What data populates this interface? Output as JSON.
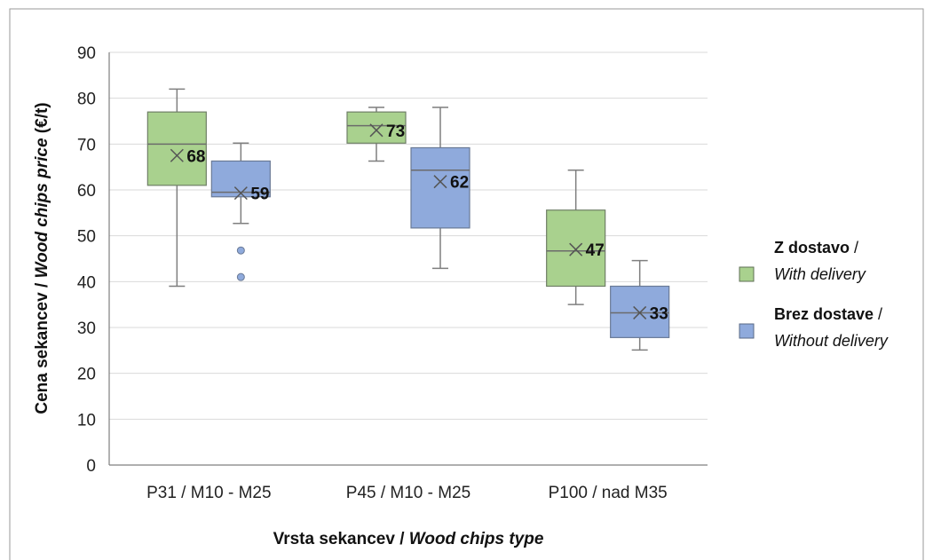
{
  "chart_data": {
    "type": "box",
    "ylabel_main": "Cena sekancev / ",
    "ylabel_italic": "Wood chips price",
    "ylabel_unit": " (€/t)",
    "xlabel_main": "Vrsta sekancev / ",
    "xlabel_italic": "Wood chips type",
    "ylim": [
      0,
      90
    ],
    "yticks": [
      0,
      10,
      20,
      30,
      40,
      50,
      60,
      70,
      80,
      90
    ],
    "grid": true,
    "legend_position": "right",
    "categories": [
      "P31 / M10 - M25",
      "P45 / M10 - M25",
      "P100 / nad M35"
    ],
    "series": [
      {
        "legend_bold": "Z dostavo",
        "legend_sep": " /",
        "legend_italic": "With delivery",
        "color": "#a9d18e",
        "stroke": "#6f7f66",
        "boxes": [
          {
            "min": 39,
            "q1": 61,
            "median": 70,
            "q3": 77,
            "max": 82,
            "mean": 67.5,
            "mean_label": "68",
            "outliers": []
          },
          {
            "min": 66.3,
            "q1": 70.2,
            "median": 74,
            "q3": 77,
            "max": 78,
            "mean": 73,
            "mean_label": "73",
            "outliers": []
          },
          {
            "min": 35,
            "q1": 39,
            "median": 46.7,
            "q3": 55.6,
            "max": 64.3,
            "mean": 47,
            "mean_label": "47",
            "outliers": []
          }
        ]
      },
      {
        "legend_bold": "Brez dostave",
        "legend_sep": " /",
        "legend_italic": "Without delivery",
        "color": "#8faadc",
        "stroke": "#6a7a96",
        "boxes": [
          {
            "min": 52.7,
            "q1": 58.5,
            "median": 59.5,
            "q3": 66.3,
            "max": 70.2,
            "mean": 59.3,
            "mean_label": "59",
            "outliers": [
              46.8,
              41
            ]
          },
          {
            "min": 42.9,
            "q1": 51.7,
            "median": 64.3,
            "q3": 69.2,
            "max": 78,
            "mean": 61.8,
            "mean_label": "62",
            "outliers": []
          },
          {
            "min": 25.1,
            "q1": 27.8,
            "median": 33.2,
            "q3": 39,
            "max": 44.6,
            "mean": 33.2,
            "mean_label": "33",
            "outliers": []
          }
        ]
      }
    ]
  }
}
